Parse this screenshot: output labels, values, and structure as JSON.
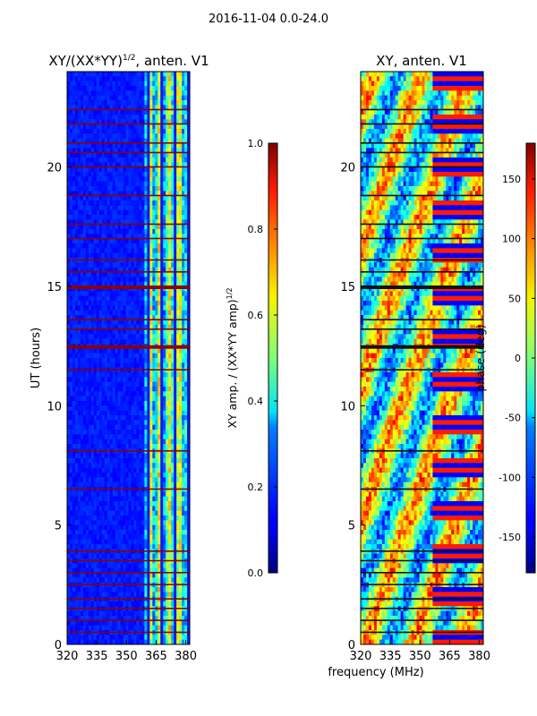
{
  "suptitle": "2016-11-04 0.0-24.0",
  "xlabel": "frequency (MHz)",
  "chart_data": [
    {
      "type": "heatmap",
      "title_main": "XY/(XX*YY)",
      "title_sup": "1/2",
      "title_tail": ", anten. V1",
      "xlabel": "",
      "ylabel": "UT (hours)",
      "xlim": [
        320,
        382
      ],
      "ylim": [
        0,
        24
      ],
      "xticks": [
        320,
        335,
        350,
        365,
        380
      ],
      "yticks": [
        0,
        5,
        10,
        15,
        20
      ],
      "colorbar": {
        "label_main": "XY amp. / (XX*YY amp)",
        "label_sup": "1/2",
        "range": [
          0.0,
          1.0
        ],
        "ticks": [
          "0.0",
          "0.2",
          "0.4",
          "0.6",
          "0.8",
          "1.0"
        ]
      }
    },
    {
      "type": "heatmap",
      "title_main": "XY, anten. V1",
      "xlabel": "frequency (MHz)",
      "ylabel": "",
      "xlim": [
        320,
        382
      ],
      "ylim": [
        0,
        24
      ],
      "xticks": [
        320,
        335,
        350,
        365,
        380
      ],
      "yticks": [
        0,
        5,
        10,
        15,
        20
      ],
      "colorbar": {
        "label_main": "phase (deg)",
        "range": [
          -180,
          180
        ],
        "ticks": [
          "-150",
          "-100",
          "-50",
          "0",
          "50",
          "100",
          "150"
        ]
      }
    }
  ]
}
